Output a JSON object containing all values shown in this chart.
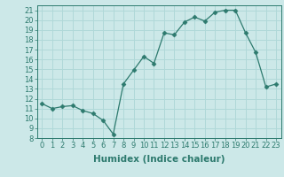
{
  "x": [
    0,
    1,
    2,
    3,
    4,
    5,
    6,
    7,
    8,
    9,
    10,
    11,
    12,
    13,
    14,
    15,
    16,
    17,
    18,
    19,
    20,
    21,
    22,
    23
  ],
  "y": [
    11.5,
    11.0,
    11.2,
    11.3,
    10.8,
    10.5,
    9.8,
    8.4,
    13.5,
    14.9,
    16.3,
    15.6,
    18.7,
    18.5,
    19.8,
    20.3,
    19.9,
    20.8,
    21.0,
    21.0,
    18.7,
    16.7,
    13.2,
    13.5
  ],
  "title": "",
  "xlabel": "Humidex (Indice chaleur)",
  "ylabel": "",
  "xlim": [
    -0.5,
    23.5
  ],
  "ylim": [
    8,
    21.5
  ],
  "yticks": [
    8,
    9,
    10,
    11,
    12,
    13,
    14,
    15,
    16,
    17,
    18,
    19,
    20,
    21
  ],
  "xticks": [
    0,
    1,
    2,
    3,
    4,
    5,
    6,
    7,
    8,
    9,
    10,
    11,
    12,
    13,
    14,
    15,
    16,
    17,
    18,
    19,
    20,
    21,
    22,
    23
  ],
  "line_color": "#2d7a6e",
  "marker": "D",
  "marker_size": 2.5,
  "bg_color": "#cce8e8",
  "grid_color": "#b0d8d8",
  "label_fontsize": 7.5,
  "tick_fontsize": 6
}
